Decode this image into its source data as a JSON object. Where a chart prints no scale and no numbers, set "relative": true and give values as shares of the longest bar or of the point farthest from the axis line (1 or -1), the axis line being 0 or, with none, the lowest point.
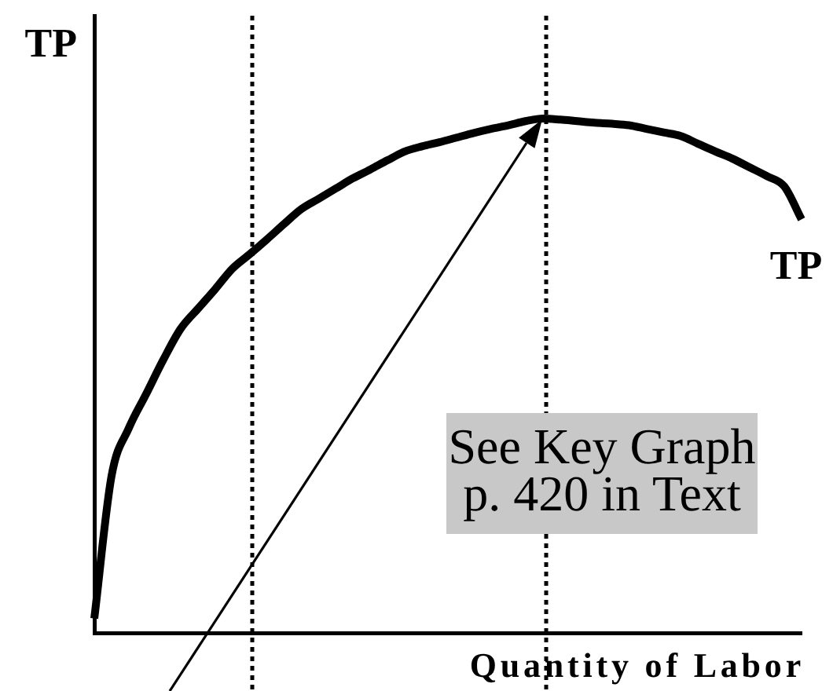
{
  "chart_data": {
    "type": "line",
    "xlabel": "Quantity of Labor",
    "ylabel": "TP",
    "relative": true,
    "categories": [
      null,
      null,
      null,
      null,
      null,
      null,
      null,
      null,
      null,
      null,
      null,
      null,
      null,
      null,
      null,
      null,
      null,
      null,
      null,
      null,
      null,
      null,
      null,
      null,
      null,
      null,
      null,
      null,
      null,
      null,
      null,
      null,
      null,
      null,
      null,
      null,
      null,
      null,
      null,
      null,
      null,
      null
    ],
    "series": [
      {
        "name": "TP",
        "color": "#000000",
        "values": [
          0.028,
          0.305,
          0.398,
          0.464,
          0.531,
          0.591,
          0.63,
          0.668,
          0.708,
          0.736,
          0.765,
          0.795,
          0.824,
          0.844,
          0.864,
          0.884,
          0.901,
          0.919,
          0.936,
          0.946,
          0.954,
          0.963,
          0.972,
          0.98,
          0.987,
          0.995,
          1,
          0.998,
          0.995,
          0.992,
          0.99,
          0.987,
          0.98,
          0.973,
          0.966,
          0.951,
          0.936,
          0.922,
          0.905,
          0.888,
          0.868,
          0.804
        ]
      }
    ],
    "annotations": [
      "See Key Graph\np. 420 in Text"
    ],
    "grid": false,
    "legend": false,
    "tick_labels": false,
    "marker": "none",
    "line_style": "solid"
  }
}
